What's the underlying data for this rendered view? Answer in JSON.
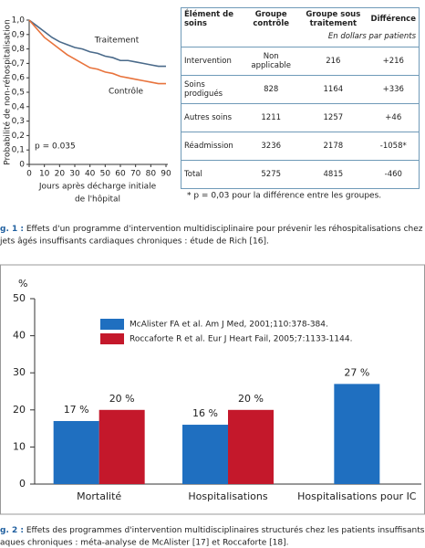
{
  "chart_data": [
    {
      "type": "line",
      "ylabel": "Probabilité de non-réhospitalisation",
      "xlabel": [
        "Jours après décharge initiale",
        "de l'hôpital"
      ],
      "x": [
        0,
        5,
        10,
        15,
        20,
        25,
        30,
        35,
        40,
        45,
        50,
        55,
        60,
        65,
        70,
        75,
        80,
        85,
        90
      ],
      "series": [
        {
          "name": "Traitement",
          "color": "#4a6a8a",
          "values": [
            1.0,
            0.96,
            0.92,
            0.88,
            0.85,
            0.83,
            0.81,
            0.8,
            0.78,
            0.77,
            0.75,
            0.74,
            0.72,
            0.72,
            0.71,
            0.7,
            0.69,
            0.68,
            0.68
          ]
        },
        {
          "name": "Contrôle",
          "color": "#e8733c",
          "values": [
            1.0,
            0.94,
            0.88,
            0.84,
            0.8,
            0.76,
            0.73,
            0.7,
            0.67,
            0.66,
            0.64,
            0.63,
            0.61,
            0.6,
            0.59,
            0.58,
            0.57,
            0.56,
            0.56
          ]
        }
      ],
      "annotations": [
        "p = 0.035"
      ],
      "xlim": [
        0,
        90
      ],
      "xticks": [
        0,
        10,
        20,
        30,
        40,
        50,
        60,
        70,
        80,
        90
      ],
      "ylim": [
        0,
        1
      ],
      "yticks": [
        0,
        {
          "value": 0.1,
          "label": "0,1"
        },
        {
          "value": 0.2,
          "label": "0,2"
        },
        {
          "value": 0.3,
          "label": "0,3"
        },
        {
          "value": 0.4,
          "label": "0,4"
        },
        {
          "value": 0.5,
          "label": "0,5"
        },
        {
          "value": 0.6,
          "label": "0,6"
        },
        {
          "value": 0.7,
          "label": "0,7"
        },
        {
          "value": 0.8,
          "label": "0,8"
        },
        {
          "value": 0.9,
          "label": "0,9"
        },
        {
          "value": 1,
          "label": "1,0"
        }
      ]
    },
    {
      "type": "bar",
      "ylabel": "%",
      "categories": [
        "Mortalité",
        "Hospitalisations",
        "Hospitalisations pour IC"
      ],
      "series": [
        {
          "name": "McAlister FA et al. Am J Med, 2001;110:378-384.",
          "color": "#1f6fc0",
          "values": [
            17,
            16,
            27
          ],
          "value_labels": [
            "17 %",
            "16 %",
            "27 %"
          ]
        },
        {
          "name": "Roccaforte R et al. Eur J Heart Fail, 2005;7:1133-1144.",
          "color": "#c4182b",
          "values": [
            20,
            20,
            null
          ],
          "value_labels": [
            "20 %",
            "20 %",
            null
          ]
        }
      ],
      "ylim": [
        0,
        50
      ],
      "yticks": [
        0,
        10,
        20,
        30,
        40,
        50
      ]
    }
  ],
  "table": {
    "header": [
      "Élément de soins",
      "Groupe contrôle",
      "Groupe sous traitement",
      "Différence"
    ],
    "subheader": "En dollars par patients",
    "rows": [
      [
        "Intervention",
        "Non applicable",
        "216",
        "+216"
      ],
      [
        "Soins prodigués",
        "828",
        "1164",
        "+336"
      ],
      [
        "Autres soins",
        "1211",
        "1257",
        "+46"
      ],
      [
        "Réadmission",
        "3236",
        "2178",
        "-1058*"
      ],
      [
        "Total",
        "5275",
        "4815",
        "-460"
      ]
    ]
  },
  "footnote": "* p = 0,03 pour la différence entre les groupes.",
  "captions": [
    {
      "label": "g. 1 :",
      "lines": [
        "Effets d'un programme d'intervention multidisciplinaire pour prévenir les réhospitalisations chez l",
        "jets âgés insuffisants cardiaques chroniques : étude de Rich [16]."
      ]
    },
    {
      "label": "g. 2 :",
      "lines": [
        "Effets des programmes d'intervention multidisciplinaires structurés chez les patients insuffisants ca",
        "aques chroniques : méta-analyse de McAlister [17] et Roccaforte [18]."
      ]
    }
  ]
}
